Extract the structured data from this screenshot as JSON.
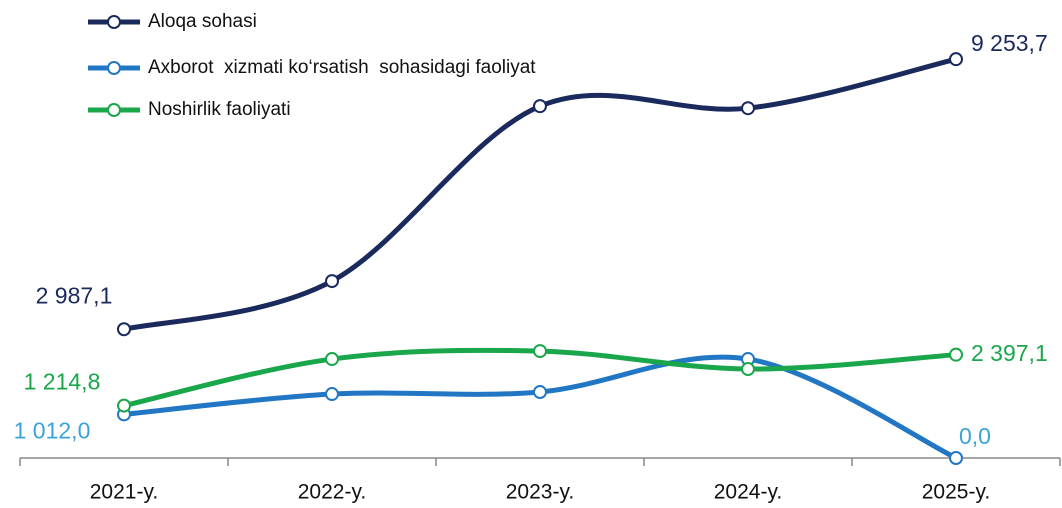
{
  "chart_data": {
    "type": "line",
    "categories": [
      "2021-y.",
      "2022-y.",
      "2023-y.",
      "2024-y.",
      "2025-y."
    ],
    "ylim": [
      0,
      10000
    ],
    "series": [
      {
        "name": "Aloqa sohasi",
        "color": "#1b2a5c",
        "label_color": "#1b2a5c",
        "values": [
          2987.1,
          4105,
          8163,
          8116,
          9253.7
        ],
        "value_labels": [
          "2 987,1",
          null,
          null,
          null,
          "9 253,7"
        ]
      },
      {
        "name": "Axborot  xizmati ko‘rsatish  sohasidagi faoliyat",
        "color": "#2277c4",
        "label_color": "#3aa3d9",
        "values": [
          1012.0,
          1484,
          1531,
          2296,
          0.0
        ],
        "value_labels": [
          "1 012,0",
          null,
          null,
          null,
          "0,0"
        ]
      },
      {
        "name": "Noshirlik faoliyati",
        "color": "#1aa64a",
        "label_color": "#1aa64a",
        "values": [
          1214.8,
          2296,
          2481,
          2064,
          2397.1
        ],
        "value_labels": [
          "1 214,8",
          null,
          null,
          null,
          "2 397,1"
        ]
      }
    ],
    "legend": "top-left"
  }
}
